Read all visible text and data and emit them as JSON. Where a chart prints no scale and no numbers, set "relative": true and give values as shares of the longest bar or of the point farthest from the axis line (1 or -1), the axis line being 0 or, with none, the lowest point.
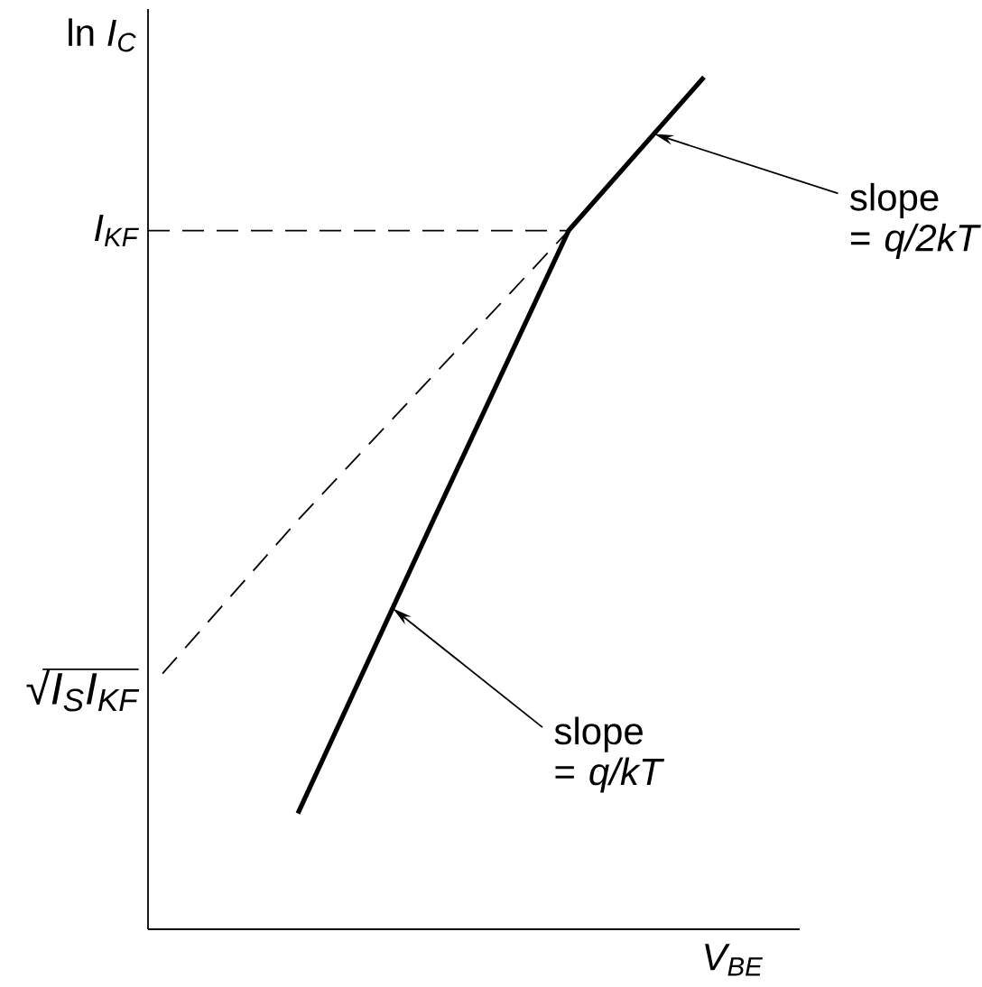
{
  "chart_data": {
    "type": "line",
    "relative": true,
    "line_style": "solid",
    "xlabel": "V$_{BE}$",
    "ylabel": "ln *I$_{C}$*",
    "categories": [
      null,
      null,
      null,
      null,
      null
    ],
    "series": [
      {
        "values": [
          null,
          0.136,
          0.48,
          0.82,
          1
        ],
        "color": "#000000"
      },
      {
        "values": [
          0.3,
          0.48,
          0.65,
          0.82,
          null
        ],
        "color": "#000000",
        "line_style": "dashed"
      }
    ],
    "ref_lines": [
      {
        "axis": "y",
        "value": 0.82,
        "label": "I$_{KF}$",
        "color": "#000000",
        "line_style": "dashed"
      }
    ],
    "annotations": [
      "√*I$_{S}$I$_{KF}$*",
      "slope = *q/2kT*",
      "slope = *q/kT*"
    ]
  }
}
